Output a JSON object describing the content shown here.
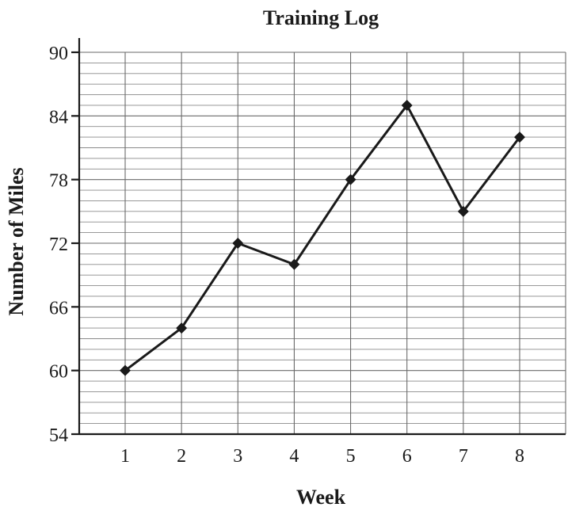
{
  "chart_data": {
    "type": "line",
    "title": "Training Log",
    "xlabel": "Week",
    "ylabel": "Number of Miles",
    "categories": [
      "1",
      "2",
      "3",
      "4",
      "5",
      "6",
      "7",
      "8"
    ],
    "series": [
      {
        "values": [
          60,
          64,
          72,
          70,
          78,
          85,
          75,
          82
        ]
      }
    ],
    "ylim": [
      54,
      90
    ],
    "yticks": [
      "54",
      "60",
      "66",
      "72",
      "78",
      "84",
      "90"
    ],
    "ytick_values": [
      54,
      60,
      66,
      72,
      78,
      84,
      90
    ],
    "minor_grid_step": 1,
    "grid": true,
    "legend": "none",
    "colors": {
      "line": "#1a1a1a",
      "grid": "#8a8a8a",
      "axis": "#1a1a1a"
    }
  }
}
